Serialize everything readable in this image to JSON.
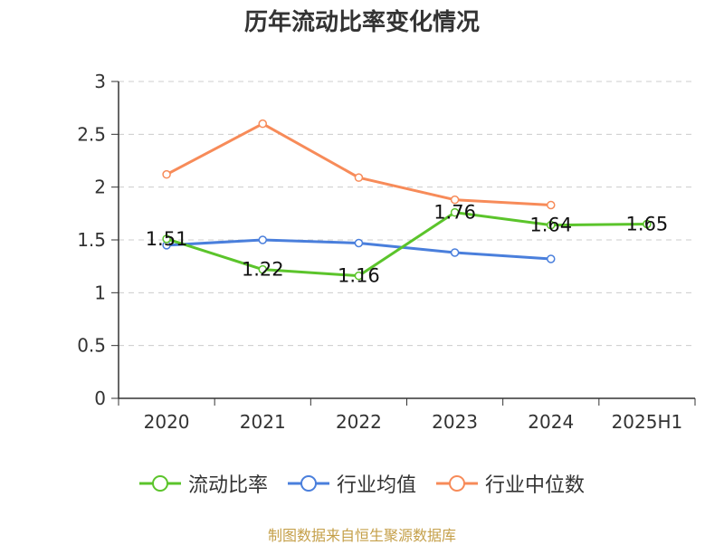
{
  "chart_data": {
    "type": "line",
    "title": "历年流动比率变化情况",
    "categories": [
      "2020",
      "2021",
      "2022",
      "2023",
      "2024",
      "2025H1"
    ],
    "ylim": [
      0,
      3
    ],
    "yticks": [
      "0",
      "0.5",
      "1",
      "1.5",
      "2",
      "2.5",
      "3"
    ],
    "grid": true,
    "legend_position": "bottom",
    "series": [
      {
        "name": "流动比率",
        "color": "#5bc42b",
        "values": [
          1.51,
          1.22,
          1.16,
          1.76,
          1.64,
          1.65
        ],
        "labels": [
          "1.51",
          "1.22",
          "1.16",
          "1.76",
          "1.64",
          "1.65"
        ]
      },
      {
        "name": "行业均值",
        "color": "#4a7fdc",
        "values": [
          1.45,
          1.5,
          1.47,
          1.38,
          1.32,
          null
        ]
      },
      {
        "name": "行业中位数",
        "color": "#f78b59",
        "values": [
          2.12,
          2.6,
          2.09,
          1.88,
          1.83,
          null
        ]
      }
    ]
  },
  "footer": {
    "source": "制图数据来自恒生聚源数据库",
    "color": "#c5a04a"
  }
}
